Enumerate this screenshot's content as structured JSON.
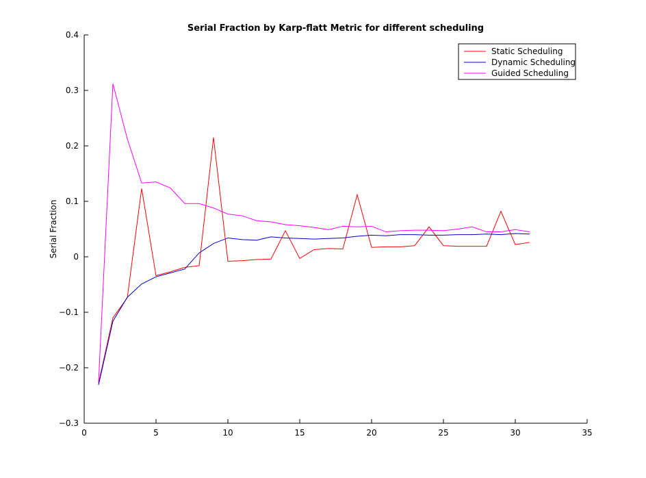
{
  "chart_data": {
    "type": "line",
    "title": "Serial Fraction by Karp-flatt Metric for different scheduling",
    "xlabel": "",
    "ylabel": "Serial Fraction",
    "xlim": [
      0,
      35
    ],
    "ylim": [
      -0.3,
      0.4
    ],
    "xticks": [
      0,
      5,
      10,
      15,
      20,
      25,
      30,
      35
    ],
    "yticks": [
      -0.3,
      -0.2,
      -0.1,
      0,
      0.1,
      0.2,
      0.3,
      0.4
    ],
    "xtick_labels": [
      "0",
      "5",
      "10",
      "15",
      "20",
      "25",
      "30",
      "35"
    ],
    "ytick_labels": [
      "−0.3",
      "−0.2",
      "−0.1",
      "0",
      "0.1",
      "0.2",
      "0.3",
      "0.4"
    ],
    "grid": false,
    "legend": "top-right",
    "x": [
      1,
      2,
      3,
      4,
      5,
      6,
      7,
      8,
      9,
      10,
      11,
      12,
      13,
      14,
      15,
      16,
      17,
      18,
      19,
      20,
      21,
      22,
      23,
      24,
      25,
      26,
      27,
      28,
      29,
      30,
      31
    ],
    "series": [
      {
        "name": "Static Scheduling",
        "color": "#ff0000",
        "values": [
          -0.228,
          -0.11,
          -0.074,
          0.123,
          -0.034,
          -0.027,
          -0.019,
          -0.016,
          0.215,
          -0.008,
          -0.007,
          -0.005,
          -0.004,
          0.047,
          -0.003,
          0.013,
          0.015,
          0.014,
          0.112,
          0.017,
          0.018,
          0.018,
          0.02,
          0.054,
          0.02,
          0.019,
          0.019,
          0.019,
          0.082,
          0.022,
          0.026
        ]
      },
      {
        "name": "Dynamic Scheduling",
        "color": "#0000cc",
        "values": [
          -0.231,
          -0.116,
          -0.073,
          -0.049,
          -0.036,
          -0.029,
          -0.022,
          0.007,
          0.024,
          0.034,
          0.031,
          0.03,
          0.036,
          0.034,
          0.033,
          0.032,
          0.033,
          0.034,
          0.037,
          0.039,
          0.038,
          0.04,
          0.04,
          0.039,
          0.039,
          0.04,
          0.04,
          0.041,
          0.04,
          0.042,
          0.041
        ]
      },
      {
        "name": "Guided Scheduling",
        "color": "#ff00ff",
        "values": [
          -0.226,
          0.312,
          0.213,
          0.133,
          0.135,
          0.124,
          0.096,
          0.096,
          0.088,
          0.077,
          0.074,
          0.065,
          0.063,
          0.058,
          0.056,
          0.053,
          0.049,
          0.055,
          0.054,
          0.055,
          0.045,
          0.047,
          0.048,
          0.048,
          0.047,
          0.05,
          0.054,
          0.045,
          0.045,
          0.049,
          0.045
        ]
      }
    ]
  }
}
